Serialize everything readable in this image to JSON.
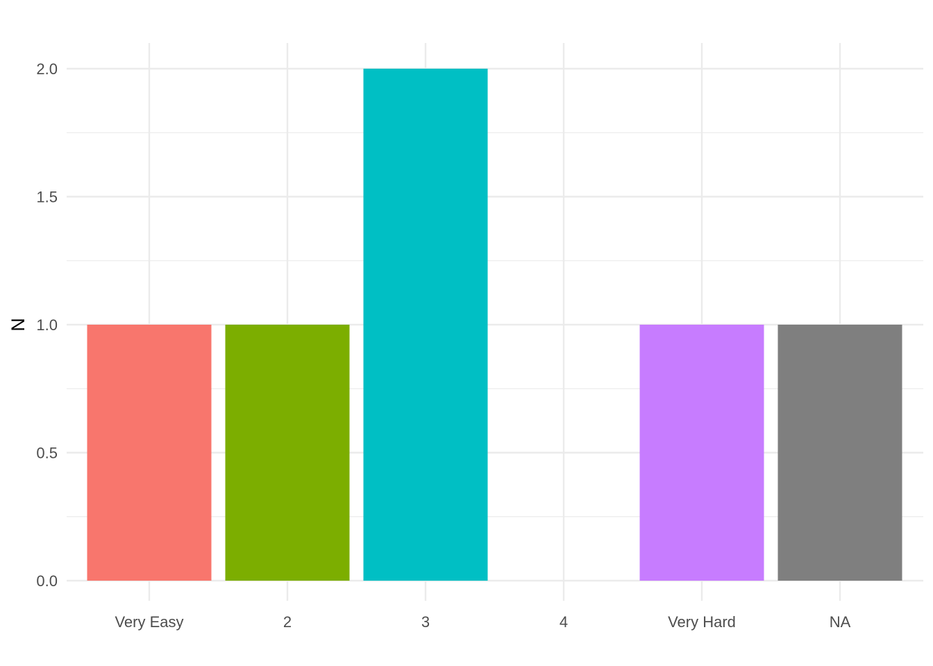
{
  "chart_data": {
    "type": "bar",
    "title": "",
    "xlabel": "",
    "ylabel": "N",
    "categories": [
      "Very Easy",
      "2",
      "3",
      "4",
      "Very Hard",
      "NA"
    ],
    "values": [
      1,
      1,
      2,
      0,
      1,
      1
    ],
    "colors": [
      "#F8766D",
      "#7CAE00",
      "#00BFC4",
      "",
      "#C77CFF",
      "#7F7F7F"
    ],
    "ylim": [
      0,
      2.1
    ],
    "y_ticks": [
      "0.0",
      "0.5",
      "1.0",
      "1.5",
      "2.0"
    ],
    "grid": true,
    "legend": "none"
  }
}
